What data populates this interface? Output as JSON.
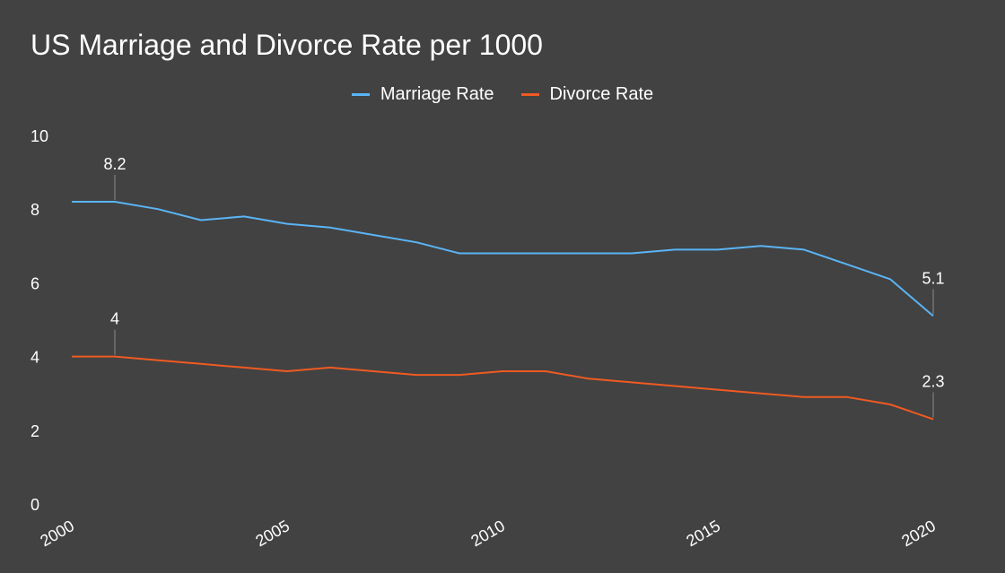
{
  "chart_data": {
    "type": "line",
    "title": "US Marriage and Divorce Rate per 1000",
    "xlabel": "",
    "ylabel": "",
    "x": [
      2000,
      2001,
      2002,
      2003,
      2004,
      2005,
      2006,
      2007,
      2008,
      2009,
      2010,
      2011,
      2012,
      2013,
      2014,
      2015,
      2016,
      2017,
      2018,
      2019,
      2020
    ],
    "series": [
      {
        "name": "Marriage Rate",
        "color": "#5ab4f5",
        "values": [
          8.2,
          8.2,
          8.0,
          7.7,
          7.8,
          7.6,
          7.5,
          7.3,
          7.1,
          6.8,
          6.8,
          6.8,
          6.8,
          6.8,
          6.9,
          6.9,
          7.0,
          6.9,
          6.5,
          6.1,
          5.1
        ]
      },
      {
        "name": "Divorce Rate",
        "color": "#f05a22",
        "values": [
          4.0,
          4.0,
          3.9,
          3.8,
          3.7,
          3.6,
          3.7,
          3.6,
          3.5,
          3.5,
          3.6,
          3.6,
          3.4,
          3.3,
          3.2,
          3.1,
          3.0,
          2.9,
          2.9,
          2.7,
          2.3
        ]
      }
    ],
    "annotations": [
      {
        "series": 0,
        "x": 2001,
        "label": "8.2"
      },
      {
        "series": 0,
        "x": 2020,
        "label": "5.1"
      },
      {
        "series": 1,
        "x": 2001,
        "label": "4"
      },
      {
        "series": 1,
        "x": 2020,
        "label": "2.3"
      }
    ],
    "ylim": [
      0,
      10
    ],
    "y_ticks": [
      "0",
      "2",
      "4",
      "6",
      "8",
      "10"
    ],
    "x_ticks": [
      "2000",
      "2005",
      "2010",
      "2015",
      "2020"
    ],
    "grid": false,
    "legend_position": "top-center",
    "background": "#424242"
  }
}
